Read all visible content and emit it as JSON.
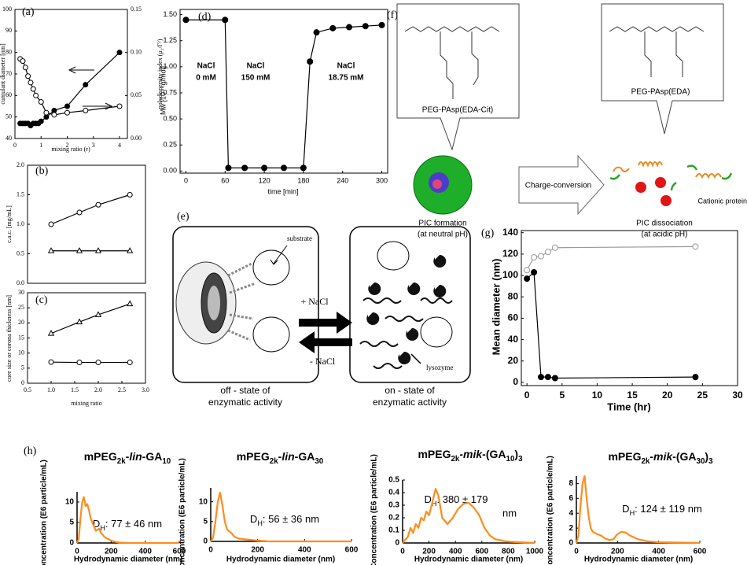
{
  "chart_data": [
    {
      "type": "line",
      "panel_label": "(a)",
      "xlabel": "mixing ratio (r)",
      "ylabel": "cumulant diameter [nm]",
      "y2label": "polydispersity index (μ₂/Γ²)",
      "xlim": [
        0,
        4.3
      ],
      "ylim": [
        40,
        100
      ],
      "y2lim": [
        0,
        0.15
      ],
      "xticks": [
        0,
        1,
        2,
        3,
        4
      ],
      "yticks": [
        40,
        50,
        60,
        70,
        80,
        90,
        100
      ],
      "y2ticks": [
        {
          "value": 0,
          "label": "0.00"
        },
        {
          "value": 0.05,
          "label": "0.05"
        },
        {
          "value": 0.1,
          "label": "0.10"
        },
        {
          "value": 0.15,
          "label": "0.15"
        }
      ],
      "series": [
        {
          "marker": "filled circle",
          "color": "#000000",
          "x": [
            0.2,
            0.3,
            0.4,
            0.5,
            0.6,
            0.7,
            0.8,
            0.9,
            1.0,
            1.2,
            1.5,
            2.0,
            2.7,
            4.0
          ],
          "values": [
            47,
            47,
            47,
            47,
            46,
            47,
            47,
            47,
            48,
            50,
            53,
            55,
            65,
            80
          ]
        },
        {
          "marker": "open circle",
          "color": "#000000",
          "axis": "y2",
          "x": [
            0.2,
            0.3,
            0.4,
            0.5,
            0.6,
            0.7,
            0.8,
            1.0,
            1.2,
            1.5,
            2.0,
            2.7,
            4.0
          ],
          "values": [
            0.0925,
            0.09,
            0.0825,
            0.0725,
            0.065,
            0.0575,
            0.05,
            0.0425,
            0.03,
            0.0275,
            0.03,
            0.0325,
            0.0375
          ]
        }
      ]
    },
    {
      "type": "line",
      "panel_label": "(b)",
      "ylabel": "c.a.c. [mg/mL]",
      "xlim": [
        0.5,
        3.0
      ],
      "ylim": [
        0,
        2.0
      ],
      "yticks": [
        {
          "value": 0,
          "label": "0.0"
        },
        0.5,
        {
          "value": 1,
          "label": "1.0"
        },
        1.5,
        {
          "value": 2,
          "label": "2.0"
        }
      ],
      "series": [
        {
          "marker": "open circle",
          "color": "#000000",
          "x": [
            1.0,
            1.6,
            2.0,
            2.67
          ],
          "values": [
            1.0,
            1.2,
            1.33,
            1.5
          ]
        },
        {
          "marker": "open triangle",
          "color": "#000000",
          "x": [
            1.0,
            1.6,
            2.0,
            2.67
          ],
          "values": [
            0.55,
            0.55,
            0.55,
            0.55
          ]
        }
      ]
    },
    {
      "type": "line",
      "panel_label": "(c)",
      "xlabel": "mixing ratio",
      "ylabel": "core size or corona thickness [nm]",
      "xlim": [
        0.5,
        3.0
      ],
      "ylim": [
        0,
        30
      ],
      "xticks": [
        0.5,
        {
          "value": 1,
          "label": "1.0"
        },
        1.5,
        {
          "value": 2,
          "label": "2.0"
        },
        2.5,
        {
          "value": 3,
          "label": "3.0"
        }
      ],
      "yticks": [
        0,
        5,
        10,
        15,
        20,
        25,
        30
      ],
      "series": [
        {
          "marker": "open triangle",
          "color": "#000000",
          "x": [
            1.0,
            1.6,
            2.0,
            2.67
          ],
          "values": [
            16.5,
            20.3,
            22.7,
            26.3
          ]
        },
        {
          "marker": "open circle",
          "color": "#000000",
          "x": [
            1.0,
            1.6,
            2.0,
            2.67
          ],
          "values": [
            7.0,
            6.9,
            6.9,
            6.9
          ]
        }
      ]
    },
    {
      "type": "line",
      "panel_label": "(d)",
      "xlabel": "time [min]",
      "ylabel": "Mw [10⁻⁶g/mol]",
      "xlim": [
        -9,
        309
      ],
      "ylim": [
        -0.02,
        1.55
      ],
      "xticks": [
        0,
        60,
        120,
        180,
        240,
        300
      ],
      "yticks": [
        {
          "value": 0,
          "label": "0.00"
        },
        {
          "value": 0.25,
          "label": "0.25"
        },
        {
          "value": 0.5,
          "label": "0.50"
        },
        {
          "value": 0.75,
          "label": "0.75"
        },
        {
          "value": 1,
          "label": "1.00"
        },
        {
          "value": 1.25,
          "label": "1.25"
        },
        {
          "value": 1.5,
          "label": "1.50"
        }
      ],
      "annotations": [
        "NaCl",
        "0 mM",
        "NaCl",
        "150 mM",
        "NaCl",
        "18.75 mM"
      ],
      "series": [
        {
          "marker": "filled circle",
          "color": "#000000",
          "x": [
            0,
            60,
            65,
            90,
            120,
            150,
            180,
            190,
            200,
            225,
            250,
            275,
            300
          ],
          "values": [
            1.45,
            1.45,
            0.03,
            0.03,
            0.03,
            0.03,
            0.03,
            1.05,
            1.33,
            1.37,
            1.38,
            1.39,
            1.4
          ]
        }
      ]
    },
    {
      "type": "line",
      "panel_label": "(g)",
      "xlabel": "Time (hr)",
      "ylabel": "Mean diameter (nm)",
      "xlim": [
        -0.8,
        30
      ],
      "ylim": [
        -3,
        142
      ],
      "xticks": [
        0,
        5,
        10,
        15,
        20,
        25,
        30
      ],
      "yticks": [
        0,
        20,
        40,
        60,
        80,
        100,
        120,
        140
      ],
      "series": [
        {
          "marker": "open circle",
          "color": "#999999",
          "x": [
            0,
            1,
            2,
            3,
            4,
            24
          ],
          "values": [
            105,
            117,
            118,
            122,
            126,
            127
          ]
        },
        {
          "marker": "filled circle",
          "color": "#000000",
          "x": [
            0,
            1,
            2,
            3,
            4,
            24
          ],
          "values": [
            97,
            103,
            5,
            5,
            4,
            5
          ]
        }
      ]
    },
    {
      "type": "line",
      "panel_label": "(h)",
      "title": "mPEG2k-lin-GA10",
      "annotations": [
        "DH: 77 ± 46 nm"
      ],
      "xlabel": "Hydrodynamic diameter (nm)",
      "ylabel": "Concentration (E6 particle/mL)",
      "xlim": [
        0,
        600
      ],
      "ylim": [
        0,
        12.5
      ],
      "xticks": [
        0,
        200,
        400,
        600
      ],
      "yticks": [
        0,
        5,
        10
      ],
      "series": [
        {
          "color": "#ff8c1a",
          "x": [
            0,
            10,
            20,
            30,
            40,
            50,
            60,
            70,
            80,
            90,
            100,
            110,
            120,
            130,
            140,
            150,
            160,
            180,
            200,
            220,
            250,
            300,
            600
          ],
          "values": [
            0,
            1,
            6,
            10,
            11.2,
            9,
            9.5,
            8,
            6,
            5,
            4,
            3,
            3.2,
            3.5,
            2.5,
            2,
            1.5,
            1,
            0.6,
            0.3,
            0.1,
            0,
            0
          ]
        }
      ]
    },
    {
      "type": "line",
      "title": "mPEG2k-lin-GA30",
      "annotations": [
        "DH: 56 ± 36 nm"
      ],
      "xlabel": "Hydrodynamic diameter (nm)",
      "ylabel": "Concentration (E6 particle/mL)",
      "xlim": [
        0,
        600
      ],
      "ylim": [
        0,
        13.5
      ],
      "xticks": [
        0,
        200,
        400,
        600
      ],
      "yticks": [
        0,
        5,
        10
      ],
      "series": [
        {
          "color": "#ff8c1a",
          "x": [
            0,
            10,
            20,
            30,
            40,
            50,
            60,
            70,
            80,
            90,
            100,
            120,
            150,
            200,
            250,
            600
          ],
          "values": [
            0,
            1,
            5,
            10,
            12.3,
            9,
            5,
            3,
            2.5,
            2,
            1.2,
            0.7,
            0.5,
            0.2,
            0,
            0
          ]
        }
      ]
    },
    {
      "type": "line",
      "title": "mPEG2k-mik-(GA10)3",
      "annotations": [
        "DH: 380 ± 179",
        "nm"
      ],
      "xlabel": "Hydrodynamic diameter (nm)",
      "ylabel": "Concentration (E6 particle/mL)",
      "xlim": [
        0,
        1000
      ],
      "ylim": [
        0,
        0.5
      ],
      "xticks": [
        0,
        200,
        400,
        600,
        800,
        1000
      ],
      "yticks": [
        0,
        0.1,
        0.2,
        0.3,
        0.4,
        0.5
      ],
      "series": [
        {
          "color": "#ff8c1a",
          "x": [
            0,
            40,
            60,
            80,
            100,
            120,
            140,
            160,
            180,
            200,
            220,
            250,
            270,
            300,
            340,
            380,
            420,
            460,
            500,
            540,
            580,
            620,
            660,
            700,
            800,
            1000
          ],
          "values": [
            0,
            0.05,
            0.12,
            0.08,
            0.15,
            0.12,
            0.2,
            0.18,
            0.25,
            0.22,
            0.3,
            0.43,
            0.38,
            0.2,
            0.15,
            0.2,
            0.27,
            0.31,
            0.32,
            0.28,
            0.22,
            0.12,
            0.06,
            0.03,
            0.01,
            0
          ]
        }
      ]
    },
    {
      "type": "line",
      "title": "mPEG2k-mik-(GA30)3",
      "annotations": [
        "DH: 124 ± 119 nm"
      ],
      "xlabel": "Hydrodynamic diameter (nm)",
      "ylabel": "Concentration (E6 particle/mL)",
      "xlim": [
        0,
        600
      ],
      "ylim": [
        0,
        9
      ],
      "xticks": [
        0,
        200,
        400,
        600
      ],
      "yticks": [
        0,
        2,
        4,
        6,
        8
      ],
      "series": [
        {
          "color": "#ff8c1a",
          "x": [
            0,
            10,
            20,
            30,
            40,
            50,
            60,
            70,
            80,
            100,
            120,
            140,
            160,
            180,
            200,
            220,
            240,
            260,
            300,
            350,
            400,
            500,
            600
          ],
          "values": [
            0,
            1,
            5,
            8,
            9,
            6,
            3.5,
            2,
            1.5,
            1.2,
            1,
            0.6,
            0.4,
            0.5,
            1.2,
            1.5,
            1.4,
            1,
            0.5,
            0.2,
            0.1,
            0.05,
            0
          ]
        }
      ]
    }
  ],
  "diagrams": {
    "e": {
      "panel_label": "(e)",
      "substrate": "substrate",
      "add_salt": "+ NaCl",
      "remove_salt": "- NaCl",
      "lysozyme": "lysozyme",
      "off_state": [
        "off - state of",
        "enzymatic activity"
      ],
      "on_state": [
        "on - state of",
        "enzymatic activity"
      ]
    },
    "f": {
      "panel_label": "(f)",
      "polymer_left": "PEG-PAsp(EDA-Cit)",
      "polymer_right": "PEG-PAsp(EDA)",
      "process": "Charge-conversion",
      "protein": "Cationic protein",
      "formation": [
        "PIC formation",
        "(at neutral pH)"
      ],
      "dissociation": [
        "PIC dissociation",
        "(at acidic pH)"
      ]
    }
  }
}
